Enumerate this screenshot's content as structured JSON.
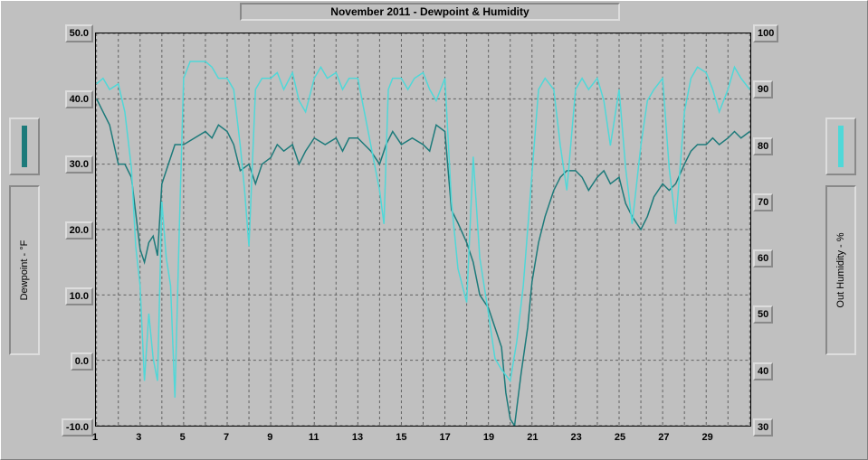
{
  "chart": {
    "type": "line",
    "title": "November 2011 - Dewpoint & Humidity",
    "background_color": "#c0c0c0",
    "grid_color": "#606060",
    "grid_dash": "3,3",
    "axis_text_color": "#000000",
    "title_fontsize": 12,
    "tick_fontsize": 11,
    "x": {
      "min": 1,
      "max": 31,
      "ticks": [
        1,
        3,
        5,
        7,
        9,
        11,
        13,
        15,
        17,
        19,
        21,
        23,
        25,
        27,
        29
      ],
      "gridlines_every": 1
    },
    "y_left": {
      "label": "Dewpoint - °F",
      "min": -10.0,
      "max": 50.0,
      "ticks": [
        "-10.0",
        "0.0",
        "10.0",
        "20.0",
        "30.0",
        "40.0",
        "50.0"
      ],
      "tick_values": [
        -10,
        0,
        10,
        20,
        30,
        40,
        50
      ]
    },
    "y_right": {
      "label": "Out Humidity - %",
      "min": 30,
      "max": 100,
      "ticks": [
        "30",
        "40",
        "50",
        "60",
        "70",
        "80",
        "90",
        "100"
      ],
      "tick_values": [
        30,
        40,
        50,
        60,
        70,
        80,
        90,
        100
      ]
    },
    "series": [
      {
        "name": "Dewpoint",
        "axis": "left",
        "color": "#1c7a7a",
        "line_width": 1.5,
        "data": [
          [
            1,
            40
          ],
          [
            1.3,
            38
          ],
          [
            1.6,
            36
          ],
          [
            2,
            30
          ],
          [
            2.3,
            30
          ],
          [
            2.6,
            28
          ],
          [
            3,
            17
          ],
          [
            3.2,
            15
          ],
          [
            3.4,
            18
          ],
          [
            3.6,
            19
          ],
          [
            3.8,
            16
          ],
          [
            4,
            27
          ],
          [
            4.3,
            30
          ],
          [
            4.6,
            33
          ],
          [
            5,
            33
          ],
          [
            5.5,
            34
          ],
          [
            6,
            35
          ],
          [
            6.3,
            34
          ],
          [
            6.6,
            36
          ],
          [
            7,
            35
          ],
          [
            7.3,
            33
          ],
          [
            7.6,
            29
          ],
          [
            8,
            30
          ],
          [
            8.3,
            27
          ],
          [
            8.6,
            30
          ],
          [
            9,
            31
          ],
          [
            9.3,
            33
          ],
          [
            9.6,
            32
          ],
          [
            10,
            33
          ],
          [
            10.3,
            30
          ],
          [
            10.6,
            32
          ],
          [
            11,
            34
          ],
          [
            11.5,
            33
          ],
          [
            12,
            34
          ],
          [
            12.3,
            32
          ],
          [
            12.6,
            34
          ],
          [
            13,
            34
          ],
          [
            13.3,
            33
          ],
          [
            13.6,
            32
          ],
          [
            14,
            30
          ],
          [
            14.3,
            33
          ],
          [
            14.6,
            35
          ],
          [
            15,
            33
          ],
          [
            15.5,
            34
          ],
          [
            16,
            33
          ],
          [
            16.3,
            32
          ],
          [
            16.6,
            36
          ],
          [
            17,
            35
          ],
          [
            17.3,
            23
          ],
          [
            17.6,
            21
          ],
          [
            18,
            18
          ],
          [
            18.3,
            15
          ],
          [
            18.6,
            10
          ],
          [
            19,
            8
          ],
          [
            19.3,
            5
          ],
          [
            19.6,
            2
          ],
          [
            19.8,
            -5
          ],
          [
            20,
            -9
          ],
          [
            20.2,
            -10
          ],
          [
            20.5,
            -2
          ],
          [
            20.8,
            5
          ],
          [
            21,
            12
          ],
          [
            21.3,
            18
          ],
          [
            21.6,
            22
          ],
          [
            22,
            26
          ],
          [
            22.3,
            28
          ],
          [
            22.6,
            29
          ],
          [
            23,
            29
          ],
          [
            23.3,
            28
          ],
          [
            23.6,
            26
          ],
          [
            24,
            28
          ],
          [
            24.3,
            29
          ],
          [
            24.6,
            27
          ],
          [
            25,
            28
          ],
          [
            25.3,
            24
          ],
          [
            25.6,
            22
          ],
          [
            26,
            20
          ],
          [
            26.3,
            22
          ],
          [
            26.6,
            25
          ],
          [
            27,
            27
          ],
          [
            27.3,
            26
          ],
          [
            27.6,
            27
          ],
          [
            28,
            30
          ],
          [
            28.3,
            32
          ],
          [
            28.6,
            33
          ],
          [
            29,
            33
          ],
          [
            29.3,
            34
          ],
          [
            29.6,
            33
          ],
          [
            30,
            34
          ],
          [
            30.3,
            35
          ],
          [
            30.6,
            34
          ],
          [
            31,
            35
          ]
        ]
      },
      {
        "name": "Out Humidity",
        "axis": "right",
        "color": "#4fd8d8",
        "line_width": 1.5,
        "data": [
          [
            1,
            91
          ],
          [
            1.3,
            92
          ],
          [
            1.6,
            90
          ],
          [
            2,
            91
          ],
          [
            2.3,
            86
          ],
          [
            2.6,
            76
          ],
          [
            2.8,
            62
          ],
          [
            3,
            55
          ],
          [
            3.2,
            38
          ],
          [
            3.4,
            50
          ],
          [
            3.6,
            42
          ],
          [
            3.8,
            38
          ],
          [
            4,
            70
          ],
          [
            4.2,
            60
          ],
          [
            4.4,
            55
          ],
          [
            4.6,
            35
          ],
          [
            4.8,
            65
          ],
          [
            5,
            92
          ],
          [
            5.3,
            95
          ],
          [
            5.6,
            95
          ],
          [
            6,
            95
          ],
          [
            6.3,
            94
          ],
          [
            6.6,
            92
          ],
          [
            7,
            92
          ],
          [
            7.3,
            90
          ],
          [
            7.6,
            80
          ],
          [
            7.8,
            72
          ],
          [
            8,
            62
          ],
          [
            8.3,
            90
          ],
          [
            8.6,
            92
          ],
          [
            9,
            92
          ],
          [
            9.3,
            93
          ],
          [
            9.6,
            90
          ],
          [
            10,
            93
          ],
          [
            10.3,
            88
          ],
          [
            10.6,
            86
          ],
          [
            11,
            92
          ],
          [
            11.3,
            94
          ],
          [
            11.6,
            92
          ],
          [
            12,
            93
          ],
          [
            12.3,
            90
          ],
          [
            12.6,
            92
          ],
          [
            13,
            92
          ],
          [
            13.3,
            86
          ],
          [
            13.6,
            80
          ],
          [
            14,
            72
          ],
          [
            14.2,
            66
          ],
          [
            14.4,
            90
          ],
          [
            14.6,
            92
          ],
          [
            15,
            92
          ],
          [
            15.3,
            90
          ],
          [
            15.6,
            92
          ],
          [
            16,
            93
          ],
          [
            16.3,
            90
          ],
          [
            16.6,
            88
          ],
          [
            17,
            92
          ],
          [
            17.3,
            70
          ],
          [
            17.6,
            58
          ],
          [
            18,
            52
          ],
          [
            18.3,
            78
          ],
          [
            18.6,
            60
          ],
          [
            19,
            50
          ],
          [
            19.3,
            42
          ],
          [
            19.6,
            40
          ],
          [
            20,
            38
          ],
          [
            20.3,
            45
          ],
          [
            20.6,
            55
          ],
          [
            21,
            75
          ],
          [
            21.3,
            90
          ],
          [
            21.6,
            92
          ],
          [
            22,
            90
          ],
          [
            22.3,
            80
          ],
          [
            22.6,
            72
          ],
          [
            23,
            90
          ],
          [
            23.3,
            92
          ],
          [
            23.6,
            90
          ],
          [
            24,
            92
          ],
          [
            24.3,
            88
          ],
          [
            24.6,
            80
          ],
          [
            25,
            90
          ],
          [
            25.3,
            76
          ],
          [
            25.6,
            66
          ],
          [
            26,
            80
          ],
          [
            26.3,
            88
          ],
          [
            26.6,
            90
          ],
          [
            27,
            92
          ],
          [
            27.3,
            76
          ],
          [
            27.6,
            66
          ],
          [
            28,
            86
          ],
          [
            28.3,
            92
          ],
          [
            28.6,
            94
          ],
          [
            29,
            93
          ],
          [
            29.3,
            90
          ],
          [
            29.6,
            86
          ],
          [
            30,
            90
          ],
          [
            30.3,
            94
          ],
          [
            30.6,
            92
          ],
          [
            31,
            90
          ]
        ]
      }
    ],
    "legend_left": {
      "color": "#1c7a7a"
    },
    "legend_right": {
      "color": "#4fd8d8"
    }
  }
}
